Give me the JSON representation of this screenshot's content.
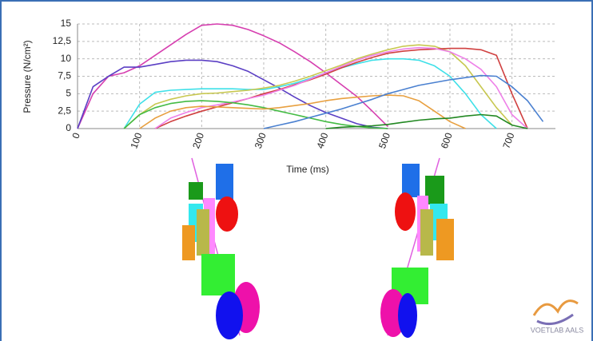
{
  "chart_data": {
    "type": "line",
    "y_label": "Pressure (N/cm²)",
    "x_label": "Time (ms)",
    "logo": "VOETLAB AALS",
    "x": [
      0,
      25,
      50,
      75,
      100,
      125,
      150,
      175,
      200,
      225,
      250,
      275,
      300,
      325,
      350,
      375,
      400,
      425,
      450,
      475,
      500,
      525,
      550,
      575,
      600,
      625,
      650,
      675,
      700,
      725,
      750
    ],
    "xlim": [
      0,
      770
    ],
    "xticks": [
      0,
      100,
      200,
      300,
      400,
      500,
      600,
      700
    ],
    "ylim": [
      0,
      15
    ],
    "yticks": [
      0,
      {
        "value": 2.5,
        "label": "2,5"
      },
      5,
      {
        "value": 7.5,
        "label": "7,5"
      },
      10,
      {
        "value": 12.5,
        "label": "12,5"
      },
      15
    ],
    "grid": true,
    "series": [
      {
        "color": "#d63fb0",
        "values": [
          0,
          5,
          7.5,
          8,
          9,
          10.5,
          12,
          13.5,
          14.8,
          15,
          14.8,
          14.2,
          13.3,
          12.3,
          11,
          9.6,
          8,
          6.3,
          4.6,
          2.5,
          0.3,
          null,
          null,
          null,
          null,
          null,
          null,
          null,
          null,
          null,
          null
        ]
      },
      {
        "color": "#5b3fc4",
        "values": [
          0,
          6,
          7.5,
          8.8,
          8.8,
          9.2,
          9.6,
          9.8,
          9.8,
          9.6,
          9,
          8.2,
          7,
          5.8,
          4.5,
          3.3,
          2.3,
          1.5,
          0.7,
          0.2,
          0,
          null,
          null,
          null,
          null,
          null,
          null,
          null,
          null,
          null,
          null
        ]
      },
      {
        "color": "#3fe0e8",
        "values": [
          null,
          null,
          null,
          0,
          3.5,
          5.2,
          5.5,
          5.6,
          5.7,
          5.7,
          5.7,
          5.6,
          5.6,
          6,
          6.5,
          7.2,
          8,
          8.7,
          9.3,
          9.8,
          10,
          10,
          9.8,
          9,
          7.5,
          5,
          2,
          0,
          null,
          null,
          null
        ]
      },
      {
        "color": "#c8c850",
        "values": [
          null,
          null,
          null,
          0,
          2,
          3.5,
          4.2,
          4.7,
          5,
          5.1,
          5.3,
          5.5,
          5.8,
          6.2,
          6.8,
          7.5,
          8.3,
          9.1,
          10,
          10.7,
          11.3,
          11.8,
          12,
          11.8,
          11,
          9,
          6,
          3,
          0.5,
          null,
          null
        ]
      },
      {
        "color": "#d04040",
        "values": [
          null,
          null,
          null,
          null,
          null,
          0,
          1,
          1.8,
          2.5,
          3.1,
          3.7,
          4.3,
          5,
          5.6,
          6.3,
          7,
          7.8,
          8.7,
          9.5,
          10.2,
          10.8,
          11.1,
          11.3,
          11.4,
          11.5,
          11.5,
          11.3,
          10.5,
          5,
          0,
          null
        ]
      },
      {
        "color": "#ee80e8",
        "values": [
          null,
          null,
          null,
          null,
          null,
          0,
          1.5,
          2.3,
          3,
          3.4,
          3.8,
          4.3,
          4.8,
          5.5,
          6.2,
          7.1,
          8,
          8.9,
          9.8,
          10.5,
          11,
          11.4,
          11.6,
          11.5,
          11,
          10,
          8.5,
          6,
          2,
          0,
          null
        ]
      },
      {
        "color": "#44bb44",
        "values": [
          null,
          null,
          null,
          0,
          2,
          3,
          3.6,
          3.9,
          4,
          3.9,
          3.7,
          3.4,
          3,
          2.5,
          2,
          1.5,
          1,
          0.6,
          0.3,
          0.1,
          0,
          null,
          null,
          null,
          null,
          null,
          null,
          null,
          null,
          null,
          null
        ]
      },
      {
        "color": "#e8a040",
        "values": [
          null,
          null,
          null,
          null,
          0,
          1.5,
          2.5,
          3,
          3.2,
          3.1,
          3,
          2.9,
          2.8,
          3,
          3.3,
          3.6,
          4,
          4.3,
          4.5,
          4.7,
          4.8,
          4.7,
          4,
          2.5,
          1,
          0,
          null,
          null,
          null,
          null,
          null
        ]
      },
      {
        "color": "#4a80d0",
        "values": [
          null,
          null,
          null,
          null,
          null,
          null,
          null,
          null,
          null,
          null,
          null,
          null,
          0,
          0.5,
          1,
          1.6,
          2.2,
          2.8,
          3.5,
          4.2,
          5,
          5.6,
          6.2,
          6.6,
          7,
          7.3,
          7.6,
          7.5,
          6,
          4,
          1
        ]
      },
      {
        "color": "#228822",
        "values": [
          null,
          null,
          null,
          null,
          null,
          null,
          null,
          null,
          null,
          null,
          null,
          null,
          null,
          null,
          null,
          null,
          0,
          0.2,
          0.3,
          0.4,
          0.6,
          0.9,
          1.2,
          1.4,
          1.5,
          1.8,
          2,
          1.8,
          0.5,
          0,
          null
        ]
      }
    ]
  }
}
